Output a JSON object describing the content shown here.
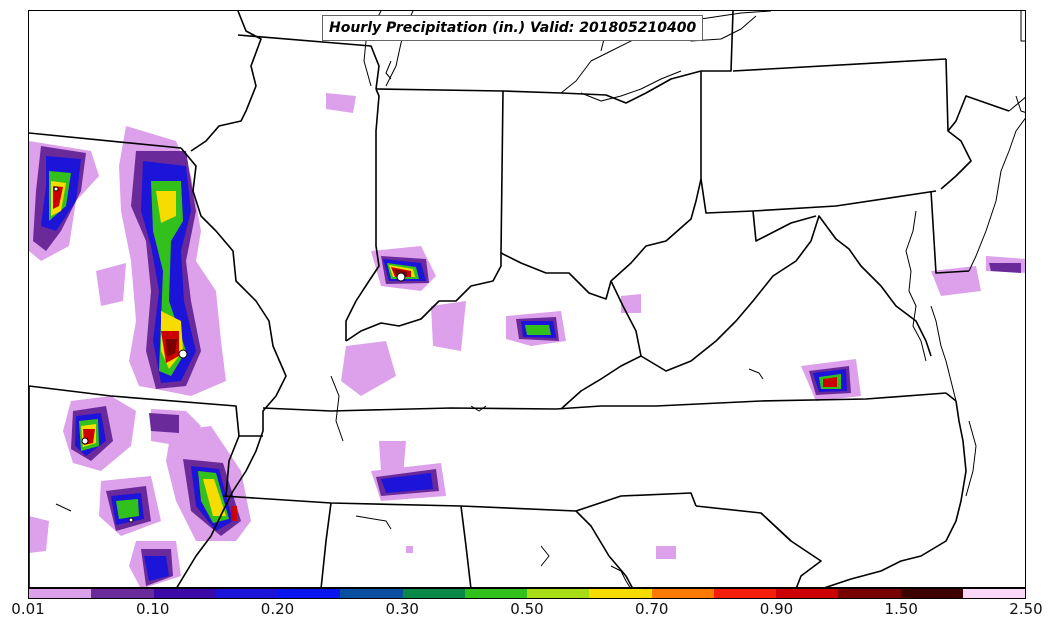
{
  "title": "Hourly Precipitation (in.) Valid: 201805210400",
  "colorbar": {
    "colors": [
      "#dda0ea",
      "#6a2a9a",
      "#3c0aa8",
      "#1c14d8",
      "#0a16f0",
      "#0a4ea0",
      "#0a8848",
      "#32c01c",
      "#a8dc14",
      "#f6dc00",
      "#ff7a00",
      "#f51e0a",
      "#cc0000",
      "#780000",
      "#3c0000",
      "#fbd8f8"
    ],
    "tick_labels": [
      "0.01",
      "0.10",
      "0.20",
      "0.30",
      "0.50",
      "0.70",
      "0.90",
      "1.50",
      "2.50"
    ]
  }
}
